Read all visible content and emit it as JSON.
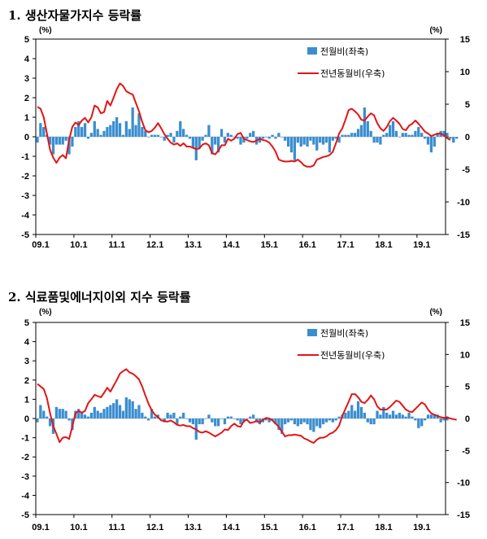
{
  "colors": {
    "bar": "#3a8ed0",
    "line": "#e41414",
    "axis": "#000000"
  },
  "chart_data": [
    {
      "type": "bar+line",
      "title": "1. 생산자물가지수 등락률",
      "y_left_unit": "(%)",
      "y_right_unit": "(%)",
      "ylim_left": [
        -5,
        5
      ],
      "ylim_right": [
        -15,
        15
      ],
      "y_left_ticks": [
        5,
        4,
        3,
        2,
        1,
        0,
        -1,
        -2,
        -3,
        -4,
        -5
      ],
      "y_right_ticks": [
        15,
        10,
        5,
        0,
        -5,
        -10,
        -15
      ],
      "x_ticks": [
        "09.1",
        "10.1",
        "11.1",
        "12.1",
        "13.1",
        "14.1",
        "15.1",
        "16.1",
        "17.1",
        "18.1",
        "19.1"
      ],
      "x_range": [
        "2009-01",
        "2019-09"
      ],
      "legend": [
        "전월비(좌축)",
        "전년동월비(우축)"
      ],
      "series": [
        {
          "name": "전월비(좌축)",
          "axis": "left",
          "type": "bar",
          "start": "2009-01",
          "values": [
            -0.3,
            0.7,
            0.5,
            0.1,
            -0.4,
            -0.9,
            -0.4,
            -0.4,
            -0.4,
            -0.2,
            -0.9,
            -0.5,
            0.5,
            0.8,
            0.5,
            0.7,
            -0.1,
            0.2,
            0.8,
            0.4,
            0.1,
            0.3,
            0.5,
            0.6,
            0.8,
            1.0,
            0.7,
            0.1,
            0.8,
            0.4,
            1.5,
            0.6,
            1.2,
            0.5,
            0.3,
            0.0,
            0.1,
            0.1,
            0.1,
            0.0,
            -0.2,
            0.1,
            0.2,
            -0.3,
            0.3,
            0.8,
            0.4,
            0.1,
            -0.1,
            -0.6,
            -1.2,
            -0.6,
            -0.2,
            0.1,
            0.6,
            -0.9,
            -0.4,
            -0.8,
            0.4,
            -0.3,
            0.2,
            0.1,
            0.0,
            -0.1,
            -0.4,
            -0.3,
            -0.1,
            0.2,
            0.3,
            -0.4,
            -0.3,
            -0.1,
            0.0,
            -0.1,
            0.1,
            -0.1,
            0.2,
            0.0,
            -0.2,
            -0.5,
            -0.8,
            -1.2,
            -0.3,
            -0.5,
            -0.4,
            -0.5,
            -0.2,
            -0.4,
            -0.7,
            -0.3,
            -0.4,
            -0.3,
            -0.8,
            -0.2,
            -0.1,
            -0.3,
            0.1,
            0.1,
            0.1,
            0.2,
            0.2,
            0.4,
            0.6,
            1.5,
            0.8,
            0.3,
            -0.3,
            -0.3,
            -0.4,
            0.1,
            0.2,
            0.6,
            0.8,
            0.3,
            0.0,
            0.2,
            0.2,
            0.1,
            0.1,
            0.3,
            0.5,
            0.2,
            -0.1,
            -0.4,
            -0.8,
            -0.5,
            0.2,
            0.3,
            0.3,
            0.2,
            -0.1,
            -0.3,
            -0.1
          ]
        },
        {
          "name": "전년동월비(우축)",
          "axis": "right",
          "type": "line",
          "start": "2009-01",
          "values": [
            4.6,
            4.3,
            3.0,
            0.5,
            -2.0,
            -3.2,
            -4.0,
            -3.2,
            -2.8,
            -3.3,
            -0.5,
            1.5,
            2.2,
            1.8,
            2.5,
            2.9,
            2.2,
            3.0,
            4.8,
            4.5,
            3.6,
            3.8,
            5.5,
            4.8,
            6.0,
            7.3,
            8.2,
            7.8,
            7.0,
            6.7,
            6.5,
            5.2,
            3.9,
            2.3,
            1.0,
            0.7,
            0.9,
            1.4,
            2.1,
            1.3,
            0.4,
            -0.3,
            -0.9,
            -1.2,
            -1.0,
            -1.4,
            -1.0,
            -1.5,
            -1.5,
            -1.7,
            -1.9,
            -1.8,
            -1.2,
            -1.0,
            -1.3,
            -2.5,
            -2.7,
            -2.1,
            -1.3,
            -1.3,
            -0.3,
            -0.6,
            -0.3,
            0.4,
            0.6,
            -0.3,
            -0.5,
            -0.7,
            -0.8,
            -0.6,
            -0.3,
            -0.5,
            -0.6,
            -0.9,
            -1.5,
            -2.3,
            -3.5,
            -3.7,
            -3.8,
            -3.8,
            -3.7,
            -3.8,
            -3.5,
            -3.9,
            -4.4,
            -4.6,
            -4.6,
            -4.4,
            -3.5,
            -3.3,
            -3.1,
            -3.0,
            -2.8,
            -2.3,
            -1.0,
            0.5,
            1.3,
            2.6,
            4.1,
            4.3,
            3.9,
            3.4,
            2.6,
            2.5,
            3.1,
            3.6,
            3.3,
            2.1,
            1.3,
            0.9,
            1.5,
            2.4,
            2.9,
            2.5,
            2.0,
            1.2,
            1.0,
            1.7,
            2.0,
            2.5,
            2.0,
            1.4,
            0.8,
            0.5,
            0.1,
            0.3,
            0.5,
            0.5,
            0.2,
            -0.2,
            -0.5
          ]
        }
      ]
    },
    {
      "type": "bar+line",
      "title": "2. 식료품및에너지이외 지수 등락률",
      "y_left_unit": "(%)",
      "y_right_unit": "(%)",
      "ylim_left": [
        -5,
        5
      ],
      "ylim_right": [
        -15,
        15
      ],
      "y_left_ticks": [
        5,
        4,
        3,
        2,
        1,
        0,
        -1,
        -2,
        -3,
        -4,
        -5
      ],
      "y_right_ticks": [
        15,
        10,
        5,
        0,
        -5,
        -10,
        -15
      ],
      "x_ticks": [
        "09.1",
        "10.1",
        "11.1",
        "12.1",
        "13.1",
        "14.1",
        "15.1",
        "16.1",
        "17.1",
        "18.1",
        "19.1"
      ],
      "x_range": [
        "2009-01",
        "2019-09"
      ],
      "legend": [
        "전월비(좌축)",
        "전년동월비(우축)"
      ],
      "series": [
        {
          "name": "전월비(좌축)",
          "axis": "left",
          "type": "bar",
          "start": "2009-01",
          "values": [
            -0.2,
            0.7,
            0.4,
            0.1,
            -0.4,
            -0.8,
            0.6,
            0.5,
            0.5,
            0.4,
            -0.1,
            -0.6,
            0.4,
            0.5,
            0.3,
            0.2,
            0.1,
            0.3,
            0.6,
            0.4,
            0.3,
            0.5,
            0.6,
            0.7,
            0.8,
            1.0,
            0.7,
            0.4,
            1.1,
            1.0,
            0.9,
            0.5,
            0.7,
            0.3,
            0.1,
            -0.1,
            0.5,
            0.1,
            0.2,
            0.0,
            -0.2,
            0.3,
            0.2,
            0.3,
            -0.3,
            0.1,
            0.3,
            0.0,
            -0.2,
            -0.3,
            -1.1,
            -0.3,
            -0.3,
            0.0,
            0.2,
            -0.2,
            -0.4,
            -0.4,
            0.0,
            -0.3,
            0.1,
            0.1,
            0.0,
            -0.1,
            -0.3,
            -0.2,
            0.0,
            0.1,
            0.2,
            -0.2,
            -0.3,
            -0.2,
            -0.1,
            -0.2,
            -0.1,
            -0.3,
            -0.6,
            -0.8,
            -0.3,
            -0.2,
            -0.1,
            -0.3,
            -0.4,
            -0.3,
            -0.2,
            -0.3,
            -0.6,
            -0.7,
            -0.4,
            -0.5,
            -0.3,
            -0.2,
            -0.1,
            -0.2,
            -0.1,
            0.1,
            0.2,
            0.3,
            0.4,
            0.7,
            0.4,
            0.9,
            0.6,
            0.3,
            -0.2,
            -0.3,
            -0.3,
            0.4,
            0.2,
            0.6,
            0.3,
            0.2,
            0.4,
            0.2,
            0.3,
            0.2,
            0.1,
            0.3,
            0.1,
            -0.1,
            -0.5,
            -0.4,
            -0.1,
            0.2,
            0.2,
            0.2,
            0.2,
            -0.2,
            -0.1,
            -0.1
          ]
        },
        {
          "name": "전년동월비(우축)",
          "axis": "right",
          "type": "line",
          "start": "2009-01",
          "values": [
            5.4,
            5.0,
            4.6,
            3.2,
            0.8,
            -1.2,
            -2.4,
            -3.7,
            -3.0,
            -2.9,
            -3.2,
            -1.3,
            0.8,
            1.2,
            0.9,
            1.2,
            2.4,
            3.0,
            3.7,
            3.5,
            3.3,
            4.0,
            4.8,
            4.2,
            5.1,
            6.0,
            7.0,
            7.4,
            7.7,
            7.2,
            7.0,
            6.6,
            6.1,
            5.0,
            3.6,
            2.3,
            1.3,
            0.6,
            0.2,
            -0.3,
            -0.4,
            -0.5,
            -0.3,
            -0.6,
            -1.0,
            -1.1,
            -1.0,
            -1.2,
            -1.2,
            -1.5,
            -1.7,
            -2.1,
            -2.2,
            -2.0,
            -2.2,
            -2.5,
            -2.8,
            -2.5,
            -2.2,
            -1.7,
            -1.8,
            -1.2,
            -0.8,
            -1.2,
            -1.3,
            -0.4,
            -0.2,
            -0.7,
            -0.6,
            -0.4,
            -0.6,
            -0.2,
            0.1,
            0.0,
            -0.3,
            -0.8,
            -1.3,
            -2.1,
            -2.8,
            -2.6,
            -2.6,
            -2.5,
            -2.6,
            -2.7,
            -3.1,
            -3.3,
            -3.6,
            -3.8,
            -3.3,
            -3.0,
            -3.0,
            -2.8,
            -2.4,
            -2.2,
            -1.8,
            -1.1,
            0.4,
            1.5,
            2.6,
            3.8,
            3.8,
            3.3,
            2.6,
            2.4,
            2.9,
            3.6,
            3.0,
            1.9,
            1.4,
            1.4,
            1.4,
            1.8,
            2.3,
            2.8,
            2.6,
            2.0,
            1.4,
            1.1,
            1.0,
            1.5,
            2.0,
            2.5,
            2.2,
            1.4,
            0.8,
            0.6,
            0.4,
            0.2,
            0.1,
            0.2,
            0.0,
            -0.1,
            -0.2
          ]
        }
      ]
    }
  ]
}
